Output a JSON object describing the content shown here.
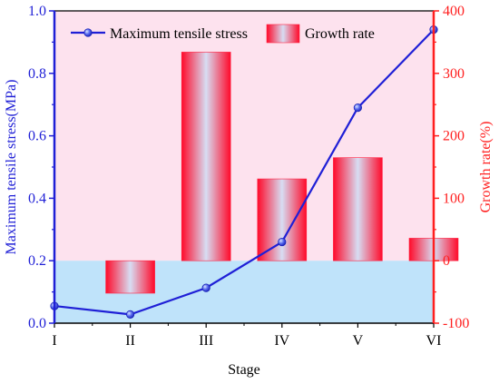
{
  "chart_data": {
    "type": "bar+line",
    "categories": [
      "I",
      "II",
      "III",
      "IV",
      "V",
      "VI"
    ],
    "xlabel": "Stage",
    "left_axis": {
      "label": "Maximum tensile stress(MPa)",
      "range": [
        0.0,
        1.0
      ],
      "ticks": [
        "0.0",
        "0.2",
        "0.4",
        "0.6",
        "0.8",
        "1.0"
      ],
      "color": "#1f1fd6"
    },
    "right_axis": {
      "label": "Growth rate(%)",
      "range": [
        -100,
        400
      ],
      "ticks": [
        "-100",
        "0",
        "100",
        "200",
        "300",
        "400"
      ],
      "color": "#ff1f1f"
    },
    "series": [
      {
        "name": "Maximum tensile stress",
        "kind": "line",
        "axis": "left",
        "values": [
          0.055,
          0.028,
          0.113,
          0.26,
          0.69,
          0.94
        ]
      },
      {
        "name": "Growth rate",
        "kind": "bar",
        "axis": "right",
        "values": [
          null,
          -52,
          334,
          131,
          165,
          36
        ]
      }
    ],
    "legend_position": "top",
    "background": {
      "positive_region": "#fde2ee",
      "negative_region": "#bfe3fa"
    }
  }
}
